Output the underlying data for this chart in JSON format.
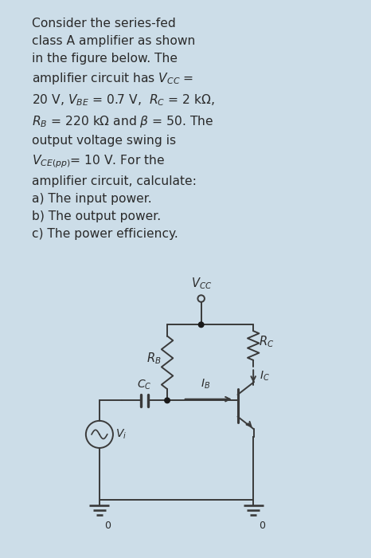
{
  "bg_color": "#ccdde8",
  "panel_bg": "#e8f0f5",
  "text_color": "#2a2a2a",
  "circuit_line_color": "#3a3a3a",
  "figsize": [
    4.66,
    7.0
  ],
  "dpi": 100,
  "text_fontsize": 11.2,
  "text_linespacing": 1.58,
  "circuit_lw": 1.4,
  "vcc_label": "$V_{CC}$",
  "rb_label": "$R_B$",
  "rc_label": "$R_C$",
  "ic_label": "$I_C$",
  "ib_label": "$I_B$",
  "cc_label": "$C_C$",
  "vi_label": "$V_i$",
  "gnd_label": "0"
}
